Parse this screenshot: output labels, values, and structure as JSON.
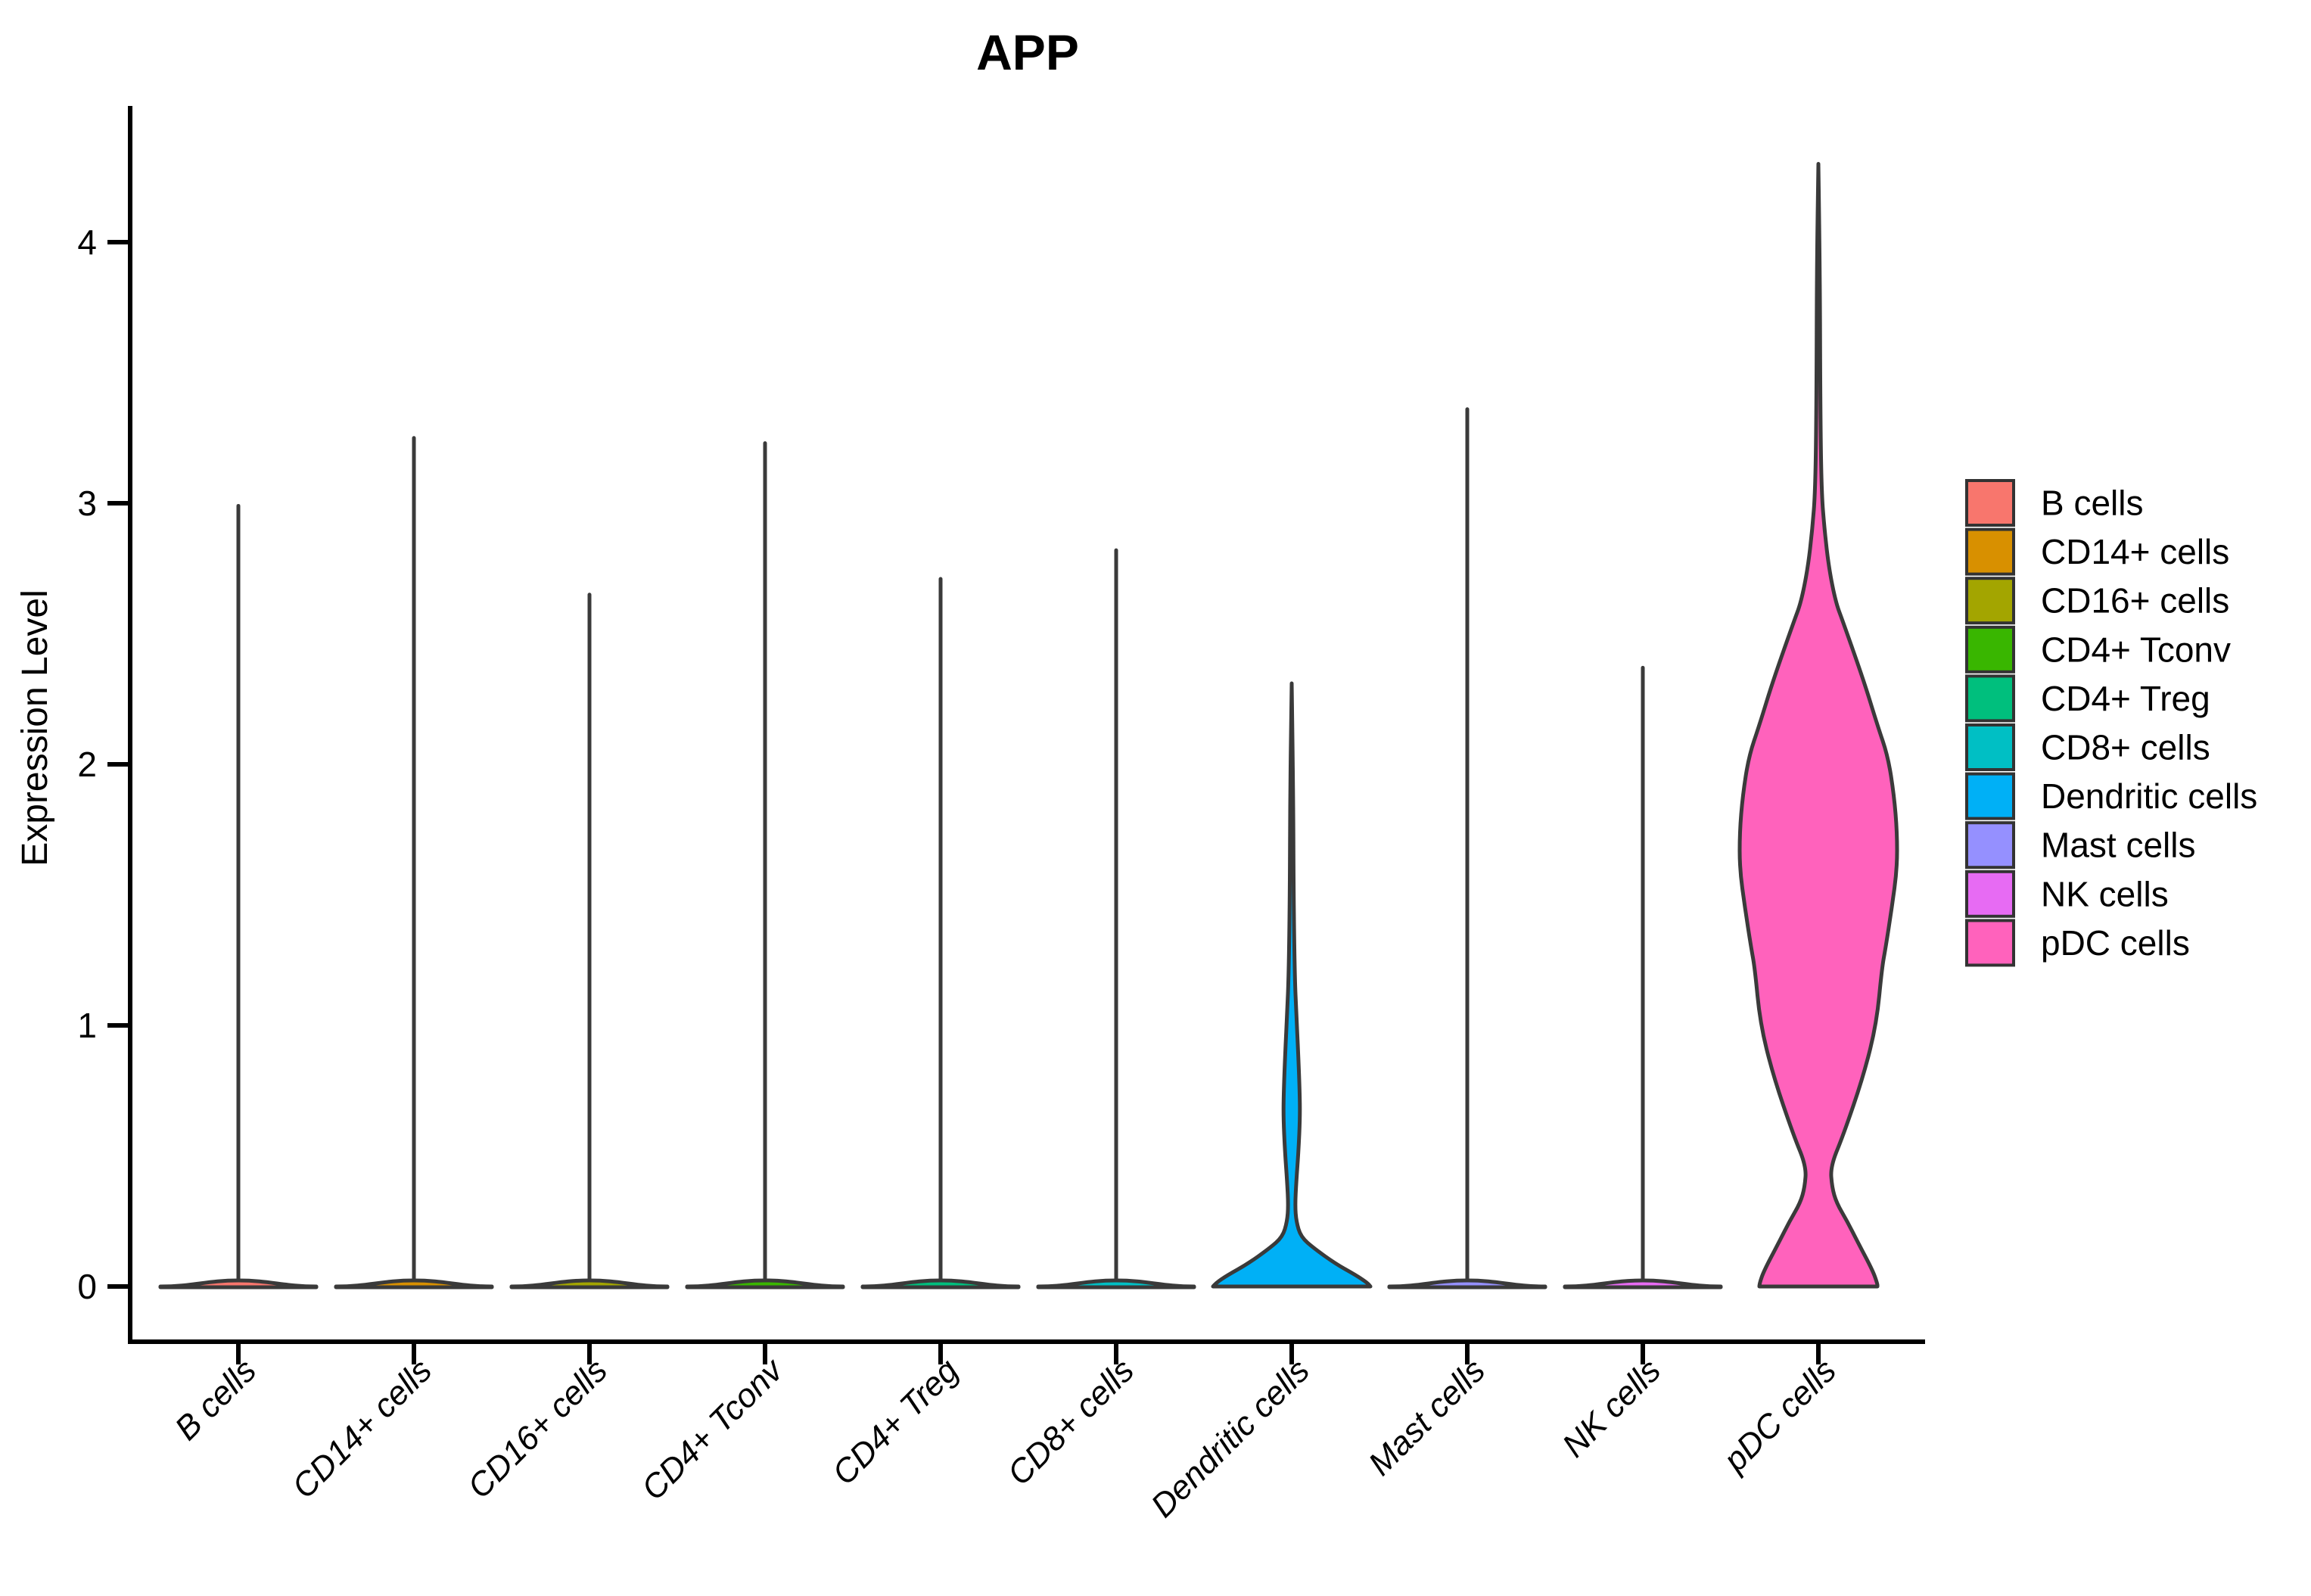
{
  "title": "APP",
  "y_axis": {
    "label": "Expression Level",
    "ticks": [
      0,
      1,
      2,
      3,
      4
    ],
    "range": [
      0,
      4.52
    ]
  },
  "style": {
    "outline_color": "#3A3A3A",
    "axis_color": "#000000",
    "legend_key_border": "#333333"
  },
  "chart_data": {
    "type": "violin",
    "title": "APP",
    "xlabel": "",
    "ylabel": "Expression Level",
    "ylim": [
      0,
      4.52
    ],
    "y_ticks": [
      0,
      1,
      2,
      3,
      4
    ],
    "grid": false,
    "legend_position": "right",
    "categories": [
      "B cells",
      "CD14+ cells",
      "CD16+ cells",
      "CD4+ Tconv",
      "CD4+ Treg",
      "CD8+ cells",
      "Dendritic cells",
      "Mast cells",
      "NK cells",
      "pDC cells"
    ],
    "series": [
      {
        "name": "B cells",
        "color": "#F8766D",
        "shape": "spike",
        "max_expression": 2.99,
        "bulk_at_zero": true
      },
      {
        "name": "CD14+ cells",
        "color": "#D89000",
        "shape": "spike",
        "max_expression": 3.25,
        "bulk_at_zero": true
      },
      {
        "name": "CD16+ cells",
        "color": "#A3A500",
        "shape": "spike",
        "max_expression": 2.65,
        "bulk_at_zero": true
      },
      {
        "name": "CD4+ Tconv",
        "color": "#39B600",
        "shape": "spike",
        "max_expression": 3.23,
        "bulk_at_zero": true
      },
      {
        "name": "CD4+ Treg",
        "color": "#00BF7D",
        "shape": "spike",
        "max_expression": 2.71,
        "bulk_at_zero": true
      },
      {
        "name": "CD8+ cells",
        "color": "#00BFC4",
        "shape": "spike",
        "max_expression": 2.82,
        "bulk_at_zero": true
      },
      {
        "name": "Dendritic cells",
        "color": "#00B0F6",
        "shape": "density",
        "max_expression": 2.31,
        "bulk_at_zero": true,
        "profile": [
          [
            2.31,
            0
          ],
          [
            1.9,
            2
          ],
          [
            1.5,
            2.5
          ],
          [
            1.19,
            4
          ],
          [
            1.05,
            6
          ],
          [
            0.9,
            8.5
          ],
          [
            0.75,
            10.5
          ],
          [
            0.65,
            11
          ],
          [
            0.52,
            9
          ],
          [
            0.4,
            6
          ],
          [
            0.31,
            4.5
          ],
          [
            0.25,
            6
          ],
          [
            0.19,
            12
          ],
          [
            0.145,
            30
          ],
          [
            0.087,
            58
          ],
          [
            0.043,
            85
          ],
          [
            0.014,
            100
          ],
          [
            0.0,
            104
          ]
        ],
        "flat_base_halfwidth": 104
      },
      {
        "name": "Mast cells",
        "color": "#9590FF",
        "shape": "spike",
        "max_expression": 3.36,
        "bulk_at_zero": true
      },
      {
        "name": "NK cells",
        "color": "#E76BF3",
        "shape": "spike",
        "max_expression": 2.37,
        "bulk_at_zero": true
      },
      {
        "name": "pDC cells",
        "color": "#FF62BC",
        "shape": "density",
        "max_expression": 4.3,
        "bulk_at_zero": true,
        "profile": [
          [
            4.3,
            0
          ],
          [
            3.9,
            2
          ],
          [
            3.4,
            2.5
          ],
          [
            3.05,
            4
          ],
          [
            2.9,
            8
          ],
          [
            2.75,
            14
          ],
          [
            2.62,
            23
          ],
          [
            2.55,
            32
          ],
          [
            2.32,
            60
          ],
          [
            2.15,
            78
          ],
          [
            2.03,
            92
          ],
          [
            1.88,
            100
          ],
          [
            1.74,
            104
          ],
          [
            1.6,
            104
          ],
          [
            1.45,
            97
          ],
          [
            1.3,
            89
          ],
          [
            1.22,
            84
          ],
          [
            1.01,
            77
          ],
          [
            0.81,
            60
          ],
          [
            0.58,
            33
          ],
          [
            0.46,
            16
          ],
          [
            0.38,
            18
          ],
          [
            0.32,
            24
          ],
          [
            0.25,
            38
          ],
          [
            0.17,
            52
          ],
          [
            0.06,
            72
          ],
          [
            0.01,
            78
          ],
          [
            0.0,
            78
          ]
        ],
        "flat_base_halfwidth": 78
      }
    ]
  },
  "legend": {
    "items": [
      {
        "label": "B cells",
        "color": "#F8766D"
      },
      {
        "label": "CD14+ cells",
        "color": "#D89000"
      },
      {
        "label": "CD16+ cells",
        "color": "#A3A500"
      },
      {
        "label": "CD4+ Tconv",
        "color": "#39B600"
      },
      {
        "label": "CD4+ Treg",
        "color": "#00BF7D"
      },
      {
        "label": "CD8+ cells",
        "color": "#00BFC4"
      },
      {
        "label": "Dendritic cells",
        "color": "#00B0F6"
      },
      {
        "label": "Mast cells",
        "color": "#9590FF"
      },
      {
        "label": "NK cells",
        "color": "#E76BF3"
      },
      {
        "label": "pDC cells",
        "color": "#FF62BC"
      }
    ]
  }
}
